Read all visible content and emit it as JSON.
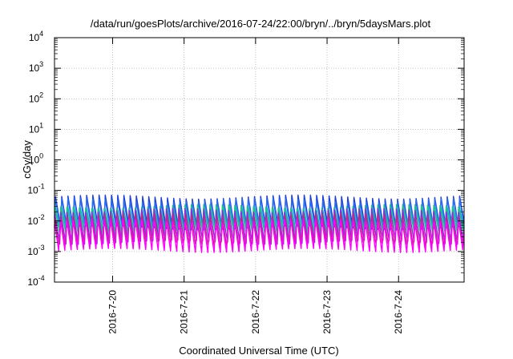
{
  "chart_data": {
    "type": "line",
    "title": "/data/run/goesPlots/archive/2016-07-24/22:00/bryn/../bryn/5daysMars.plot",
    "xlabel": "Coordinated Universal Time (UTC)",
    "ylabel": "cGy/day",
    "y_scale": "log",
    "ylim": [
      0.0001,
      10000
    ],
    "xlim": [
      "2016-07-19T04:30",
      "2016-07-24T22:00"
    ],
    "grid": true,
    "y_ticks": [
      {
        "base": "10",
        "exp": "-4"
      },
      {
        "base": "10",
        "exp": "-3"
      },
      {
        "base": "10",
        "exp": "-2"
      },
      {
        "base": "10",
        "exp": "-1"
      },
      {
        "base": "10",
        "exp": "0"
      },
      {
        "base": "10",
        "exp": "1"
      },
      {
        "base": "10",
        "exp": "2"
      },
      {
        "base": "10",
        "exp": "3"
      },
      {
        "base": "10",
        "exp": "4"
      }
    ],
    "x_ticks": [
      "2016-7-20",
      "2016-7-21",
      "2016-7-22",
      "2016-7-23",
      "2016-7-24"
    ],
    "cycles_per_day": 11.5,
    "series": [
      {
        "color": "#1f3fd8",
        "peak": 0.07,
        "trough": 0.006
      },
      {
        "color": "#2a6df0",
        "peak": 0.06,
        "trough": 0.005
      },
      {
        "color": "#14b3c4",
        "peak": 0.035,
        "trough": 0.004
      },
      {
        "color": "#22c08a",
        "peak": 0.03,
        "trough": 0.0035
      },
      {
        "color": "#8a2be2",
        "peak": 0.025,
        "trough": 0.002
      },
      {
        "color": "#cc2288",
        "peak": 0.02,
        "trough": 0.0012
      },
      {
        "color": "#ff00ff",
        "peak": 0.015,
        "trough": 0.0008
      }
    ]
  }
}
